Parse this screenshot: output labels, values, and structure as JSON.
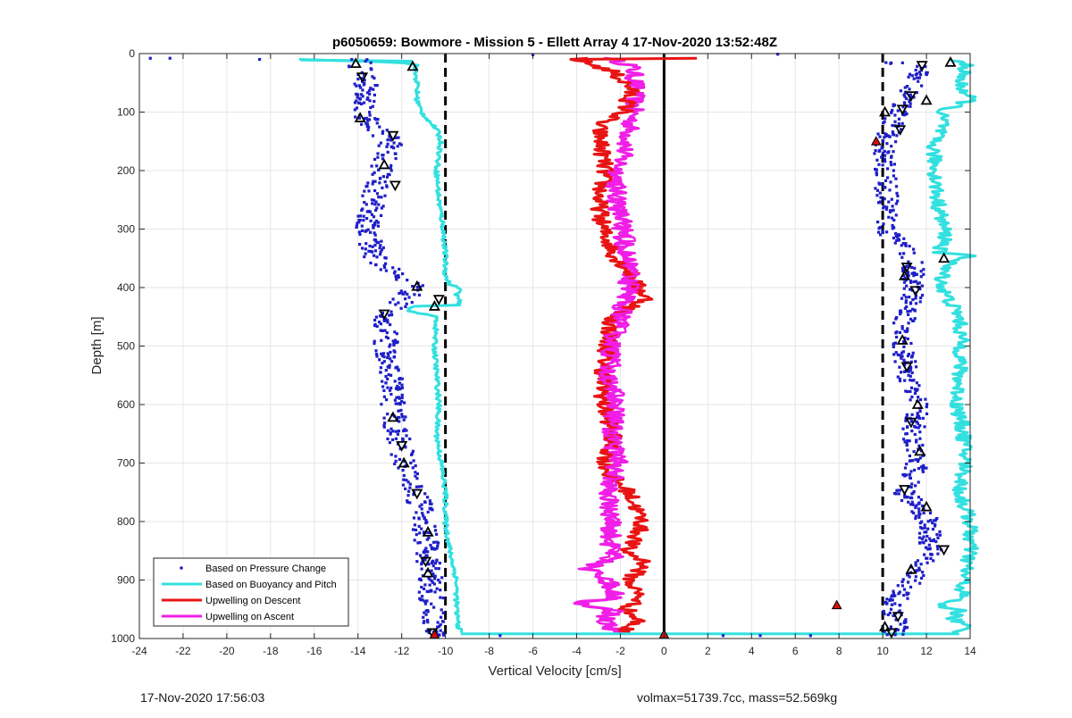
{
  "chart_data": {
    "type": "scatter",
    "title": "p6050659: Bowmore - Mission 5 - Ellett Array 4 17-Nov-2020 13:52:48Z",
    "xlabel": "Vertical Velocity [cm/s]",
    "ylabel": "Depth [m]",
    "xlim": [
      -24,
      14
    ],
    "ylim": [
      0,
      1000
    ],
    "y_reversed": true,
    "grid": true,
    "legend_position": "bottom-left",
    "x_ticks": [
      "-24",
      "-22",
      "-20",
      "-18",
      "-16",
      "-14",
      "-12",
      "-10",
      "-8",
      "-6",
      "-4",
      "-2",
      "0",
      "2",
      "4",
      "6",
      "8",
      "10",
      "12",
      "14"
    ],
    "y_ticks": [
      "0",
      "100",
      "200",
      "300",
      "400",
      "500",
      "600",
      "700",
      "800",
      "900",
      "1000"
    ],
    "reference_lines": [
      {
        "x": -10,
        "style": "dashed",
        "color": "#000000"
      },
      {
        "x": 10,
        "style": "dashed",
        "color": "#000000"
      },
      {
        "x": 0,
        "style": "solid",
        "color": "#000000"
      }
    ],
    "series": [
      {
        "name": "Based on Pressure Change",
        "kind": "points",
        "color": "#1f1fc8",
        "dive": {
          "depth": [
            10,
            50,
            100,
            150,
            200,
            250,
            300,
            350,
            400,
            450,
            500,
            550,
            600,
            650,
            700,
            750,
            800,
            850,
            900,
            950,
            990
          ],
          "x": [
            -14,
            -13.6,
            -13.9,
            -12.5,
            -13,
            -13.3,
            -13.6,
            -13.2,
            -11.3,
            -12.8,
            -12.7,
            -12.5,
            -12.4,
            -12.2,
            -11.9,
            -11.3,
            -11,
            -10.8,
            -10.7,
            -10.6,
            -10.5
          ]
        },
        "climb": {
          "depth": [
            990,
            970,
            950,
            900,
            850,
            800,
            750,
            700,
            650,
            600,
            550,
            500,
            450,
            400,
            350,
            300,
            250,
            200,
            150,
            100,
            50,
            20
          ],
          "x": [
            10.5,
            10.8,
            10.3,
            11.4,
            12.2,
            12.1,
            11,
            11.6,
            11.4,
            11.6,
            11.1,
            10.9,
            11,
            11.5,
            11.3,
            10.1,
            10.2,
            10.1,
            10.1,
            10.7,
            11.4,
            11.9
          ]
        },
        "stray_points": [
          {
            "depth": 8,
            "x": -23.5
          },
          {
            "depth": 8,
            "x": -22.6
          },
          {
            "depth": 10,
            "x": -18.5
          },
          {
            "depth": 2,
            "x": -6
          },
          {
            "depth": 1,
            "x": 5.2
          },
          {
            "depth": 995,
            "x": 2.7
          },
          {
            "depth": 995,
            "x": 4.4
          },
          {
            "depth": 995,
            "x": 6.7
          },
          {
            "depth": 995,
            "x": -7.5
          }
        ],
        "triangle_markers": [
          {
            "depth": 17,
            "x": -14.1
          },
          {
            "depth": 40,
            "x": -13.8
          },
          {
            "depth": 110,
            "x": -13.9
          },
          {
            "depth": 140,
            "x": -12.4
          },
          {
            "depth": 190,
            "x": -12.8
          },
          {
            "depth": 225,
            "x": -12.3
          },
          {
            "depth": 398,
            "x": -11.3
          },
          {
            "depth": 420,
            "x": -10.3
          },
          {
            "depth": 432,
            "x": -10.5
          },
          {
            "depth": 445,
            "x": -12.8
          },
          {
            "depth": 622,
            "x": -12.4
          },
          {
            "depth": 670,
            "x": -12
          },
          {
            "depth": 700,
            "x": -11.9
          },
          {
            "depth": 752,
            "x": -11.3
          },
          {
            "depth": 818,
            "x": -10.8
          },
          {
            "depth": 868,
            "x": -10.9
          },
          {
            "depth": 888,
            "x": -10.8
          },
          {
            "depth": 990,
            "x": -10.6
          },
          {
            "depth": 22,
            "x": -11.5
          },
          {
            "depth": 20,
            "x": 11.8
          },
          {
            "depth": 15,
            "x": 13.1
          },
          {
            "depth": 72,
            "x": 11.3
          },
          {
            "depth": 80,
            "x": 12
          },
          {
            "depth": 95,
            "x": 10.9
          },
          {
            "depth": 100,
            "x": 10.1
          },
          {
            "depth": 130,
            "x": 10.8
          },
          {
            "depth": 350,
            "x": 12.8
          },
          {
            "depth": 365,
            "x": 11.1
          },
          {
            "depth": 380,
            "x": 11
          },
          {
            "depth": 405,
            "x": 11.5
          },
          {
            "depth": 490,
            "x": 10.9
          },
          {
            "depth": 535,
            "x": 11.1
          },
          {
            "depth": 600,
            "x": 11.6
          },
          {
            "depth": 630,
            "x": 11.3
          },
          {
            "depth": 680,
            "x": 11.7
          },
          {
            "depth": 745,
            "x": 11
          },
          {
            "depth": 775,
            "x": 12
          },
          {
            "depth": 848,
            "x": 12.8
          },
          {
            "depth": 882,
            "x": 11.3
          },
          {
            "depth": 962,
            "x": 10.7
          },
          {
            "depth": 980,
            "x": 10.1
          },
          {
            "depth": 990,
            "x": 10.4
          }
        ]
      },
      {
        "name": "Based on Buoyancy and Pitch",
        "kind": "line",
        "color": "#33e0e0",
        "dive": {
          "depth": [
            10,
            15,
            20,
            30,
            50,
            80,
            100,
            130,
            150,
            200,
            250,
            300,
            350,
            380,
            395,
            400,
            405,
            410,
            420,
            430,
            432,
            436,
            440,
            450,
            500,
            550,
            600,
            650,
            700,
            750,
            800,
            850,
            900,
            950,
            980,
            990
          ],
          "x": [
            -16.6,
            -12,
            -11.3,
            -11.4,
            -11.3,
            -11.3,
            -11.1,
            -10.4,
            -10.2,
            -10.4,
            -10.3,
            -10.1,
            -10,
            -10,
            -9.8,
            -9.4,
            -9.3,
            -9.5,
            -9.4,
            -9.4,
            -11.5,
            -11.6,
            -11.7,
            -10.4,
            -10.5,
            -10.4,
            -10.3,
            -10.4,
            -10.2,
            -10,
            -10,
            -9.8,
            -9.5,
            -9.5,
            -9.4,
            -9.3
          ]
        },
        "climb": {
          "depth": [
            990,
            980,
            965,
            950,
            945,
            930,
            900,
            850,
            800,
            750,
            700,
            650,
            600,
            550,
            500,
            450,
            400,
            365,
            345,
            340,
            320,
            300,
            250,
            200,
            150,
            120,
            100,
            80,
            50,
            30,
            20,
            15,
            10
          ],
          "x": [
            13.5,
            13.8,
            13.2,
            13.6,
            12.5,
            13.6,
            13.7,
            14,
            14,
            13.5,
            13.8,
            13.7,
            13.4,
            13.5,
            13.6,
            13.5,
            12.7,
            12.8,
            14,
            12.5,
            12.9,
            12.8,
            12.5,
            12.4,
            12.3,
            12.8,
            12.6,
            14,
            13.5,
            13.7,
            13.9,
            13.4,
            13.3
          ]
        }
      },
      {
        "name": "Upwelling on Descent",
        "kind": "line",
        "color": "#e81414",
        "depth": [
          0,
          10,
          30,
          60,
          100,
          120,
          150,
          200,
          250,
          300,
          350,
          380,
          400,
          420,
          440,
          450,
          500,
          550,
          600,
          650,
          700,
          720,
          750,
          800,
          830,
          850,
          870,
          900,
          930,
          950,
          970,
          990
        ],
        "x": [
          -2,
          -4,
          -2.4,
          -1.5,
          -1.8,
          -3,
          -2.9,
          -2.7,
          -3,
          -2.8,
          -2.2,
          -1.4,
          -1.2,
          -0.8,
          -1.8,
          -2.4,
          -2.6,
          -2.8,
          -2.8,
          -2.3,
          -2.7,
          -2.5,
          -1.6,
          -1,
          -1.3,
          -1.8,
          -0.8,
          -1.6,
          -1.1,
          -1.7,
          -1.2,
          -2
        ]
      },
      {
        "name": "Upwelling on Ascent",
        "kind": "line",
        "color": "#f01ee6",
        "depth": [
          990,
          970,
          950,
          940,
          930,
          900,
          880,
          860,
          850,
          800,
          750,
          700,
          650,
          600,
          550,
          500,
          450,
          400,
          350,
          300,
          250,
          200,
          150,
          100,
          50,
          20,
          10
        ],
        "x": [
          -2.2,
          -2.8,
          -2.3,
          -4,
          -2.2,
          -2.6,
          -3.5,
          -2.3,
          -2.5,
          -2.4,
          -2.6,
          -2.1,
          -2.4,
          -2.2,
          -2.5,
          -2.4,
          -2,
          -1.6,
          -1.7,
          -1.9,
          -2.2,
          -2.1,
          -1.7,
          -1.4,
          -1.3,
          -1.5,
          -2.4
        ]
      }
    ],
    "red_markers": [
      {
        "depth": 150,
        "x": 9.7
      },
      {
        "depth": 943,
        "x": 7.9
      },
      {
        "depth": 993,
        "x": 0
      },
      {
        "depth": 993,
        "x": -10.5
      }
    ]
  },
  "footer": {
    "left": "17-Nov-2020 17:56:03",
    "right": "volmax=51739.7cc, mass=52.569kg"
  }
}
